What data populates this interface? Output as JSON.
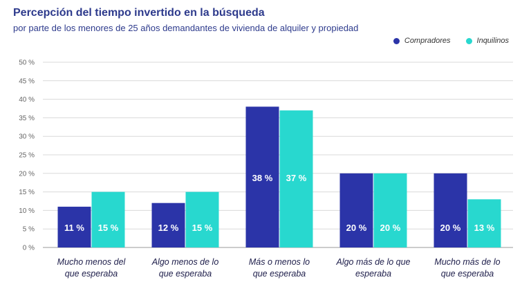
{
  "title": "Percepción del tiempo invertido en la búsqueda",
  "subtitle": "por parte de los menores de 25 años demandantes de vivienda de alquiler y propiedad",
  "colors": {
    "compradores": "#2b34a8",
    "inquilinos": "#28d8cf",
    "grid": "#d9d9d9",
    "axis": "#999999"
  },
  "chart_data": {
    "type": "bar",
    "title": "Percepción del tiempo invertido en la búsqueda",
    "subtitle": "por parte de los menores de 25 años demandantes de vivienda de alquiler y propiedad",
    "categories": [
      [
        "Mucho menos del",
        "que esperaba"
      ],
      [
        "Algo menos de lo",
        "que esperaba"
      ],
      [
        "Más o menos lo",
        "que esperaba"
      ],
      [
        "Algo más de lo que",
        "esperaba"
      ],
      [
        "Mucho más de lo",
        "que esperaba"
      ]
    ],
    "series": [
      {
        "name": "Compradores",
        "values": [
          11,
          12,
          38,
          20,
          20
        ],
        "labels": [
          "11 %",
          "12 %",
          "38 %",
          "20 %",
          "20 %"
        ]
      },
      {
        "name": "Inquilinos",
        "values": [
          15,
          15,
          37,
          20,
          13
        ],
        "labels": [
          "15 %",
          "15 %",
          "37 %",
          "20 %",
          "13 %"
        ]
      }
    ],
    "yticks": [
      "0 %",
      "5 %",
      "10 %",
      "15 %",
      "20 %",
      "25 %",
      "30 %",
      "35 %",
      "40 %",
      "45 %",
      "50 %"
    ],
    "ylim": [
      0,
      50
    ],
    "legend": "top-right",
    "grid": true
  }
}
